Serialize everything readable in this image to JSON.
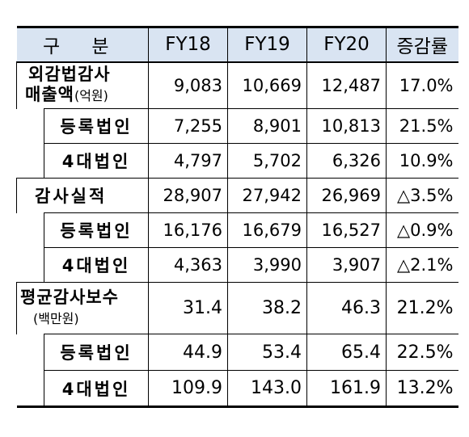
{
  "header": {
    "category": "구 분",
    "fy18": "FY18",
    "fy19": "FY19",
    "fy20": "FY20",
    "growth": "증감률"
  },
  "sections": [
    {
      "label": "외감법감사",
      "label_line2": "매출액",
      "unit": "(억원)",
      "values": [
        "9,083",
        "10,669",
        "12,487",
        "17.0%"
      ],
      "subrows": [
        {
          "label": "등록법인",
          "values": [
            "7,255",
            "8,901",
            "10,813",
            "21.5%"
          ]
        },
        {
          "label": "4대법인",
          "values": [
            "4,797",
            "5,702",
            "6,326",
            "10.9%"
          ]
        }
      ]
    },
    {
      "label": "감사실적",
      "values": [
        "28,907",
        "27,942",
        "26,969",
        "△3.5%"
      ],
      "subrows": [
        {
          "label": "등록법인",
          "values": [
            "16,176",
            "16,679",
            "16,527",
            "△0.9%"
          ]
        },
        {
          "label": "4대법인",
          "values": [
            "4,363",
            "3,990",
            "3,907",
            "△2.1%"
          ]
        }
      ]
    },
    {
      "label": "평균감사보수",
      "unit": "(백만원)",
      "values": [
        "31.4",
        "38.2",
        "46.3",
        "21.2%"
      ],
      "subrows": [
        {
          "label": "등록법인",
          "values": [
            "44.9",
            "53.4",
            "65.4",
            "22.5%"
          ]
        },
        {
          "label": "4대법인",
          "values": [
            "109.9",
            "143.0",
            "161.9",
            "13.2%"
          ]
        }
      ]
    }
  ]
}
